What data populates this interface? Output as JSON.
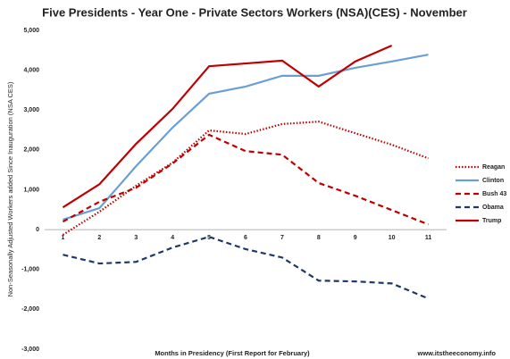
{
  "chart_data": {
    "type": "line",
    "title": "Five Presidents - Year One - Private Sectors Workers (NSA)(CES) - November",
    "y_label": "Non-Seasonally Adjusted Workers added Since Inauguration (NSA CES)",
    "x_label": "Months in Presidency (First Report for February)",
    "source": "www.itstheeconomy.info",
    "categories": [
      "1",
      "2",
      "3",
      "4",
      "5",
      "6",
      "7",
      "8",
      "9",
      "10",
      "11"
    ],
    "series": [
      {
        "name": "Reagan",
        "color": "#c00000",
        "dash": "dotted",
        "values": [
          -130,
          450,
          1100,
          1680,
          2490,
          2400,
          2650,
          2710,
          2420,
          2130,
          1790
        ]
      },
      {
        "name": "Clinton",
        "color": "#6a9fd4",
        "dash": "solid",
        "values": [
          250,
          540,
          1590,
          2560,
          3410,
          3590,
          3860,
          3860,
          4060,
          4220,
          4390
        ]
      },
      {
        "name": "Bush 43",
        "color": "#c00000",
        "dash": "dashed",
        "values": [
          200,
          700,
          1050,
          1660,
          2380,
          1970,
          1880,
          1170,
          850,
          490,
          130
        ]
      },
      {
        "name": "Obama",
        "color": "#1f3864",
        "dash": "dashed",
        "values": [
          -630,
          -850,
          -810,
          -450,
          -180,
          -490,
          -700,
          -1280,
          -1300,
          -1350,
          -1730
        ]
      },
      {
        "name": "Trump",
        "color": "#c00000",
        "dash": "solid",
        "values": [
          560,
          1140,
          2150,
          3030,
          4100,
          4170,
          4240,
          3590,
          4220,
          4620,
          null
        ]
      }
    ],
    "ylim": [
      -3000,
      5000
    ],
    "yticks": [
      {
        "value": -3000,
        "label": "-3,000"
      },
      {
        "value": -2000,
        "label": "-2,000"
      },
      {
        "value": -1000,
        "label": "-1,000"
      },
      0,
      {
        "value": 1000,
        "label": "1,000"
      },
      {
        "value": 2000,
        "label": "2,000"
      },
      {
        "value": 3000,
        "label": "3,000"
      },
      {
        "value": 4000,
        "label": "4,000"
      },
      {
        "value": 5000,
        "label": "5,000"
      }
    ],
    "grid": false,
    "legend": "right"
  }
}
